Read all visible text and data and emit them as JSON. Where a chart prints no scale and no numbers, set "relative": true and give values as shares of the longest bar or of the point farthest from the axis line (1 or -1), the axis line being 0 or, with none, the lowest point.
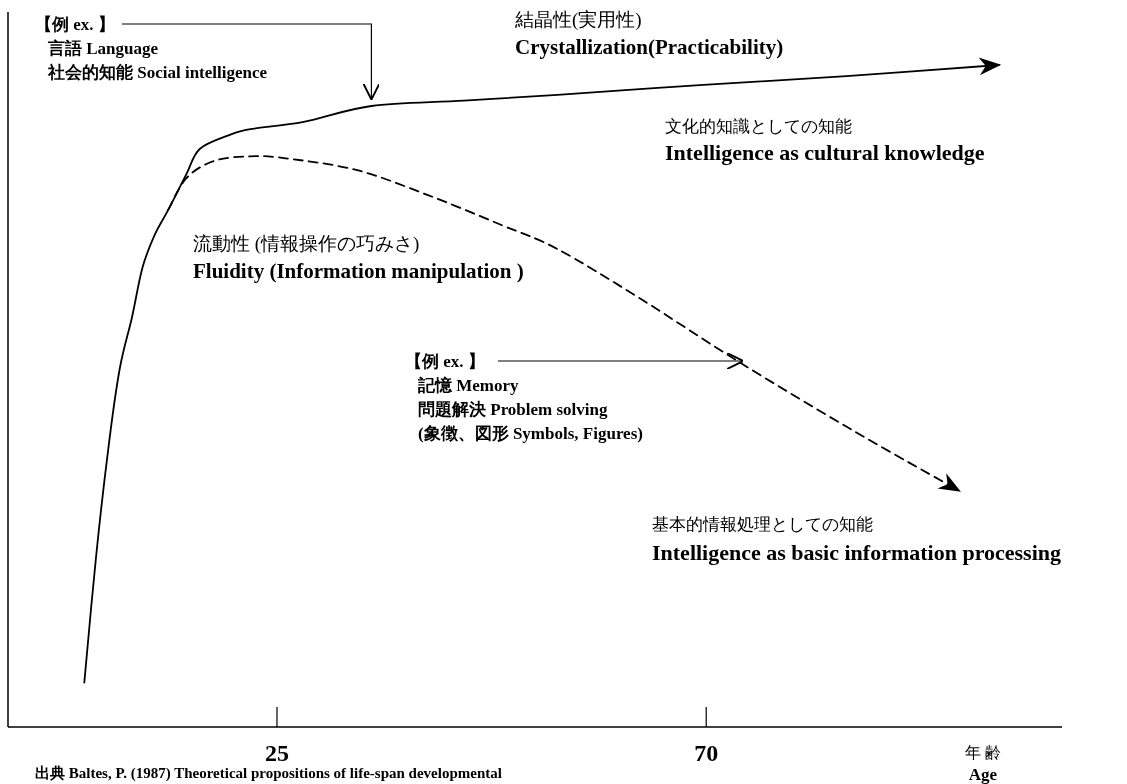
{
  "chart_data": {
    "type": "line",
    "relative": true,
    "xlim": [
      -3.2,
      107.3
    ],
    "xticks": [
      25,
      70
    ],
    "xlabel": "年 齢\nAge",
    "series": [
      {
        "name": "結晶性(実用性)\nCrystallization(Practicability)",
        "color": "#000000",
        "line_style": "solid",
        "x": [
          4.8,
          6.0,
          7.3,
          8.5,
          9.8,
          10.9,
          12.2,
          13.6,
          15.5,
          16.9,
          20.0,
          22.2,
          27.8,
          34.9,
          44.6,
          54.4,
          69.7,
          84.7,
          100.7
        ],
        "values": [
          0.067,
          0.253,
          0.419,
          0.54,
          0.619,
          0.694,
          0.744,
          0.781,
          0.835,
          0.873,
          0.894,
          0.903,
          0.914,
          0.938,
          0.946,
          0.955,
          0.97,
          0.983,
          1.0
        ]
      },
      {
        "name": "流動性 (情報操作の巧みさ)\nFluidity (Information manipulation )",
        "color": "#000000",
        "line_style": "dashed",
        "x": [
          13.6,
          15.5,
          18.4,
          22.2,
          25.9,
          33.4,
          40.9,
          48.4,
          54.4,
          63.2,
          73.7,
          85.6,
          96.5
        ],
        "values": [
          0.781,
          0.829,
          0.855,
          0.862,
          0.859,
          0.841,
          0.803,
          0.759,
          0.722,
          0.646,
          0.549,
          0.446,
          0.357
        ]
      }
    ],
    "annotations": [
      {
        "text": "【例 ex. 】",
        "x": 34.9,
        "y": 0.938
      },
      "言語  Language",
      "社会的知能  Social intelligence",
      {
        "text": "【例  ex. 】",
        "x": 73.7,
        "y": 0.549
      },
      "記憶  Memory",
      "問題解決   Problem solving",
      "(象徴、図形    Symbols,  Figures)",
      "文化的知識としての知能\nIntelligence as cultural knowledge",
      "基本的情報処理としての知能\nIntelligence as basic information processing",
      "出典  Baltes, P. (1987) Theoretical propositions of life-span developmental"
    ]
  }
}
